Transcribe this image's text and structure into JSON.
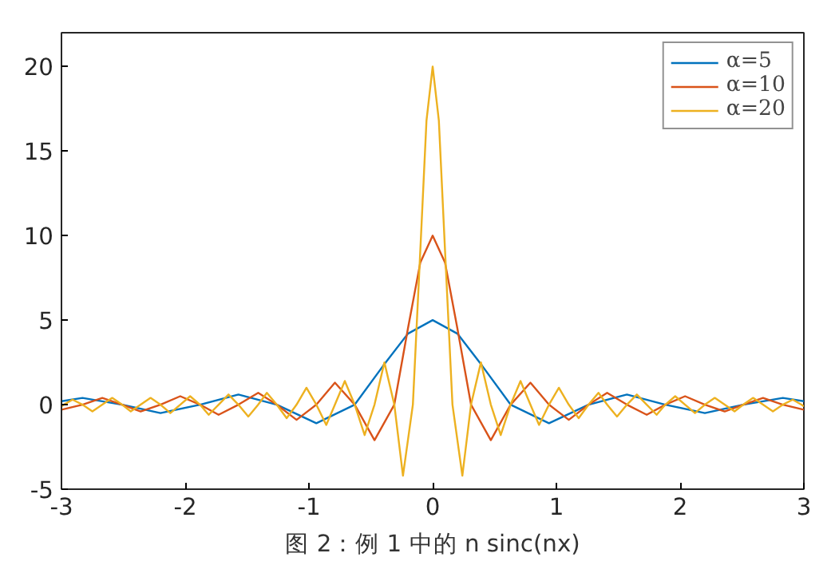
{
  "chart_data": {
    "type": "line",
    "xlim": [
      -3,
      3
    ],
    "xticks": [
      -3,
      -2,
      -1,
      0,
      1,
      2,
      3
    ],
    "ylim": [
      -5,
      22
    ],
    "yticks": [
      -5,
      0,
      5,
      10,
      15,
      20
    ],
    "grid": false,
    "legend": "top right",
    "annotations": [
      "图 2：例 1 中的 n sinc(nx)"
    ],
    "series": [
      {
        "name": "α=5",
        "color": "#0072bd",
        "x": [
          -3,
          -2.83,
          -2.51,
          -2.2,
          -1.88,
          -1.57,
          -1.26,
          -0.94,
          -0.63,
          -0.4,
          -0.2,
          0,
          0.2,
          0.4,
          0.63,
          0.94,
          1.26,
          1.57,
          1.88,
          2.2,
          2.51,
          2.83,
          3
        ],
        "values": [
          0.2,
          0.4,
          0,
          -0.5,
          0,
          0.6,
          0,
          -1.1,
          0,
          2.3,
          4.2,
          5,
          4.2,
          2.3,
          0,
          -1.1,
          0,
          0.6,
          0,
          -0.5,
          0,
          0.4,
          0.2
        ]
      },
      {
        "name": "α=10",
        "color": "#d95319",
        "x": [
          -3,
          -2.83,
          -2.67,
          -2.51,
          -2.36,
          -2.2,
          -2.04,
          -1.88,
          -1.73,
          -1.57,
          -1.41,
          -1.26,
          -1.1,
          -0.94,
          -0.79,
          -0.63,
          -0.47,
          -0.31,
          -0.2,
          -0.1,
          0,
          0.1,
          0.2,
          0.31,
          0.47,
          0.63,
          0.79,
          0.94,
          1.1,
          1.26,
          1.41,
          1.57,
          1.73,
          1.88,
          2.04,
          2.2,
          2.36,
          2.51,
          2.67,
          2.83,
          3
        ],
        "values": [
          -0.3,
          0,
          0.4,
          0,
          -0.4,
          0,
          0.5,
          0,
          -0.6,
          0,
          0.7,
          0,
          -0.9,
          0,
          1.3,
          0,
          -2.1,
          0,
          4.5,
          8.4,
          10,
          8.4,
          4.5,
          0,
          -2.1,
          0,
          1.3,
          0,
          -0.9,
          0,
          0.7,
          0,
          -0.6,
          0,
          0.5,
          0,
          -0.4,
          0,
          0.4,
          0,
          -0.3
        ]
      },
      {
        "name": "α=20",
        "color": "#edb120",
        "x": [
          -3,
          -2.98,
          -2.91,
          -2.83,
          -2.75,
          -2.67,
          -2.59,
          -2.51,
          -2.44,
          -2.36,
          -2.28,
          -2.2,
          -2.12,
          -2.04,
          -1.96,
          -1.88,
          -1.81,
          -1.73,
          -1.65,
          -1.57,
          -1.49,
          -1.41,
          -1.34,
          -1.26,
          -1.18,
          -1.1,
          -1.02,
          -0.94,
          -0.86,
          -0.79,
          -0.71,
          -0.63,
          -0.55,
          -0.47,
          -0.39,
          -0.31,
          -0.24,
          -0.16,
          -0.1,
          -0.05,
          0,
          0.05,
          0.1,
          0.16,
          0.24,
          0.31,
          0.39,
          0.47,
          0.55,
          0.63,
          0.71,
          0.79,
          0.86,
          0.94,
          1.02,
          1.1,
          1.18,
          1.26,
          1.34,
          1.41,
          1.49,
          1.57,
          1.65,
          1.73,
          1.81,
          1.88,
          1.96,
          2.04,
          2.12,
          2.2,
          2.28,
          2.36,
          2.44,
          2.51,
          2.59,
          2.67,
          2.75,
          2.83,
          2.91,
          2.98,
          3
        ],
        "values": [
          -0.1,
          0,
          0.3,
          0,
          -0.4,
          0,
          0.4,
          0,
          -0.4,
          0,
          0.4,
          0,
          -0.5,
          0,
          0.5,
          0,
          -0.6,
          0,
          0.6,
          0,
          -0.7,
          0,
          0.7,
          0,
          -0.8,
          0,
          1,
          0,
          -1.2,
          0,
          1.4,
          0,
          -1.8,
          0,
          2.5,
          0,
          -4.2,
          0,
          9.1,
          16.8,
          20,
          16.8,
          9.1,
          0,
          -4.2,
          0,
          2.5,
          0,
          -1.8,
          0,
          1.4,
          0,
          -1.2,
          0,
          1,
          0,
          -0.8,
          0,
          0.7,
          0,
          -0.7,
          0,
          0.6,
          0,
          -0.6,
          0,
          0.5,
          0,
          -0.5,
          0,
          0.4,
          0,
          -0.4,
          0,
          0.4,
          0,
          -0.4,
          0,
          0.3,
          0,
          -0.1
        ]
      }
    ]
  }
}
